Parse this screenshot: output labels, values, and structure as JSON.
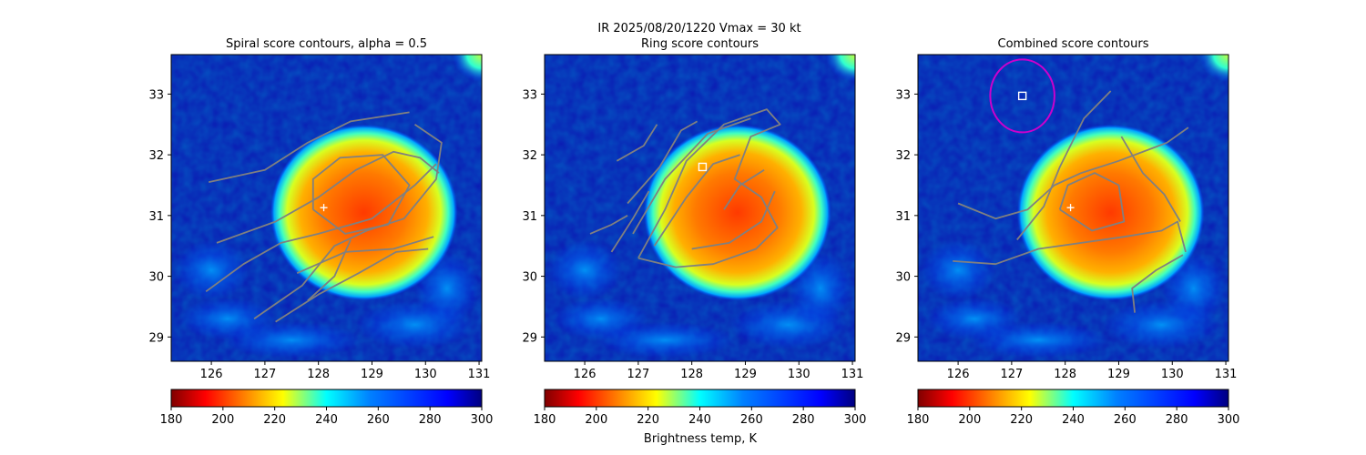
{
  "figure": {
    "suptitle_line1": "IR  2025/08/20/1220    Vmax = 30 kt",
    "colorbar_label": "Brightness temp, K"
  },
  "colors": {
    "contour": "#808080",
    "marker": "#ffffff",
    "circle": "#cc00cc"
  },
  "colorbar": {
    "colormap": "jet-reversed",
    "range": [
      180,
      300
    ],
    "ticks": [
      "180",
      "200",
      "220",
      "240",
      "260",
      "280",
      "300"
    ]
  },
  "chart_data": [
    {
      "type": "heatmap",
      "title": "Spiral score contours, alpha =  0.5",
      "xlim": [
        125.25,
        131.05
      ],
      "ylim": [
        28.6,
        33.65
      ],
      "xticks": [
        "126",
        "127",
        "128",
        "129",
        "130",
        "131"
      ],
      "yticks": [
        "29",
        "30",
        "31",
        "32",
        "33"
      ],
      "storm_core": {
        "lon": 128.85,
        "lat": 31.05,
        "min_temp_K": 190
      },
      "center_marker": {
        "shape": "plus",
        "lon": 128.1,
        "lat": 31.13
      },
      "contours": [
        [
          [
            125.9,
            29.75
          ],
          [
            126.6,
            30.2
          ],
          [
            127.3,
            30.55
          ],
          [
            128.0,
            30.7
          ],
          [
            129.0,
            30.95
          ],
          [
            129.8,
            31.5
          ],
          [
            130.2,
            31.85
          ]
        ],
        [
          [
            126.8,
            29.3
          ],
          [
            127.7,
            29.85
          ],
          [
            128.3,
            30.5
          ],
          [
            128.9,
            30.75
          ],
          [
            129.6,
            30.95
          ],
          [
            130.2,
            31.6
          ],
          [
            130.3,
            32.2
          ],
          [
            129.8,
            32.5
          ]
        ],
        [
          [
            125.95,
            31.55
          ],
          [
            127.0,
            31.75
          ],
          [
            127.8,
            32.2
          ],
          [
            128.6,
            32.55
          ],
          [
            129.7,
            32.7
          ]
        ],
        [
          [
            126.1,
            30.55
          ],
          [
            127.2,
            30.9
          ],
          [
            128.0,
            31.3
          ],
          [
            128.7,
            31.75
          ],
          [
            129.4,
            32.05
          ],
          [
            129.9,
            31.95
          ],
          [
            130.25,
            31.7
          ]
        ],
        [
          [
            127.6,
            30.05
          ],
          [
            128.5,
            30.4
          ],
          [
            129.4,
            30.45
          ],
          [
            130.15,
            30.65
          ]
        ],
        [
          [
            127.2,
            29.25
          ],
          [
            128.0,
            29.7
          ],
          [
            128.75,
            30.05
          ],
          [
            129.45,
            30.4
          ],
          [
            130.05,
            30.45
          ]
        ],
        [
          [
            127.8,
            29.6
          ],
          [
            128.3,
            30.0
          ],
          [
            128.6,
            30.6
          ]
        ],
        [
          [
            127.9,
            31.1
          ],
          [
            128.5,
            30.7
          ],
          [
            129.3,
            30.85
          ],
          [
            129.7,
            31.5
          ],
          [
            129.2,
            32.0
          ],
          [
            128.4,
            31.95
          ],
          [
            127.9,
            31.6
          ],
          [
            127.9,
            31.1
          ]
        ]
      ]
    },
    {
      "type": "heatmap",
      "title": "Ring score contours",
      "xlim": [
        125.25,
        131.05
      ],
      "ylim": [
        28.6,
        33.65
      ],
      "xticks": [
        "126",
        "127",
        "128",
        "129",
        "130",
        "131"
      ],
      "yticks": [
        "29",
        "30",
        "31",
        "32",
        "33"
      ],
      "storm_core": {
        "lon": 128.85,
        "lat": 31.05,
        "min_temp_K": 190
      },
      "center_marker": {
        "shape": "square",
        "lon": 128.2,
        "lat": 31.8
      },
      "contours": [
        [
          [
            127.0,
            30.3
          ],
          [
            127.5,
            31.1
          ],
          [
            127.9,
            31.9
          ],
          [
            128.6,
            32.5
          ],
          [
            129.4,
            32.75
          ],
          [
            129.65,
            32.5
          ],
          [
            129.1,
            32.3
          ],
          [
            128.8,
            31.6
          ],
          [
            129.3,
            31.3
          ],
          [
            129.6,
            30.8
          ],
          [
            129.2,
            30.45
          ],
          [
            128.4,
            30.2
          ],
          [
            127.7,
            30.15
          ],
          [
            127.0,
            30.3
          ]
        ],
        [
          [
            126.9,
            30.7
          ],
          [
            127.5,
            31.6
          ],
          [
            128.3,
            32.35
          ],
          [
            129.1,
            32.6
          ]
        ],
        [
          [
            127.3,
            30.5
          ],
          [
            127.9,
            31.3
          ],
          [
            128.4,
            31.85
          ],
          [
            128.9,
            32.0
          ]
        ],
        [
          [
            128.0,
            30.45
          ],
          [
            128.7,
            30.55
          ],
          [
            129.3,
            30.9
          ],
          [
            129.55,
            31.4
          ]
        ],
        [
          [
            126.8,
            31.2
          ],
          [
            127.4,
            31.8
          ],
          [
            127.8,
            32.4
          ],
          [
            128.1,
            32.55
          ]
        ],
        [
          [
            126.5,
            30.4
          ],
          [
            126.9,
            30.95
          ],
          [
            127.2,
            31.4
          ]
        ],
        [
          [
            128.6,
            31.1
          ],
          [
            128.9,
            31.5
          ],
          [
            129.35,
            31.75
          ]
        ],
        [
          [
            126.1,
            30.7
          ],
          [
            126.5,
            30.85
          ],
          [
            126.8,
            31.0
          ]
        ],
        [
          [
            126.6,
            31.9
          ],
          [
            127.1,
            32.15
          ],
          [
            127.35,
            32.5
          ]
        ]
      ]
    },
    {
      "type": "heatmap",
      "title": "Combined score contours",
      "xlim": [
        125.25,
        131.05
      ],
      "ylim": [
        28.6,
        33.65
      ],
      "xticks": [
        "126",
        "127",
        "128",
        "129",
        "130",
        "131"
      ],
      "yticks": [
        "29",
        "30",
        "31",
        "32",
        "33"
      ],
      "storm_core": {
        "lon": 128.85,
        "lat": 31.05,
        "min_temp_K": 190
      },
      "center_marker": {
        "shape": "plus",
        "lon": 128.1,
        "lat": 31.13
      },
      "square_marker": {
        "lon": 127.2,
        "lat": 32.97
      },
      "circle": {
        "lon": 127.2,
        "lat": 32.97,
        "radius_deg": 0.6
      },
      "contours": [
        [
          [
            125.9,
            30.25
          ],
          [
            126.7,
            30.2
          ],
          [
            127.5,
            30.45
          ],
          [
            128.3,
            30.55
          ],
          [
            129.1,
            30.65
          ],
          [
            129.8,
            30.75
          ],
          [
            130.1,
            30.9
          ],
          [
            130.25,
            30.4
          ]
        ],
        [
          [
            126.0,
            31.2
          ],
          [
            126.7,
            30.95
          ],
          [
            127.3,
            31.1
          ],
          [
            127.8,
            31.5
          ],
          [
            128.3,
            31.7
          ],
          [
            129.0,
            31.9
          ],
          [
            129.9,
            32.2
          ],
          [
            130.3,
            32.45
          ]
        ],
        [
          [
            127.1,
            30.6
          ],
          [
            127.6,
            31.15
          ],
          [
            127.9,
            31.8
          ],
          [
            128.35,
            32.6
          ],
          [
            128.85,
            33.05
          ]
        ],
        [
          [
            129.05,
            32.3
          ],
          [
            129.45,
            31.7
          ],
          [
            129.85,
            31.35
          ],
          [
            130.15,
            30.9
          ]
        ],
        [
          [
            129.3,
            29.4
          ],
          [
            129.25,
            29.8
          ],
          [
            129.7,
            30.1
          ],
          [
            130.2,
            30.35
          ]
        ],
        [
          [
            127.9,
            31.1
          ],
          [
            128.5,
            30.75
          ],
          [
            129.1,
            30.9
          ],
          [
            129.0,
            31.5
          ],
          [
            128.55,
            31.7
          ],
          [
            128.05,
            31.5
          ],
          [
            127.9,
            31.1
          ]
        ]
      ]
    }
  ]
}
